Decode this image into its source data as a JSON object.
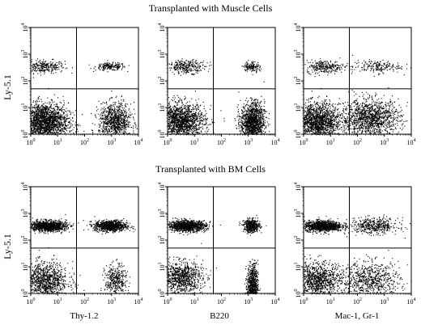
{
  "figure": {
    "row_titles": [
      "Transplanted with Muscle Cells",
      "Transplanted with BM Cells"
    ],
    "y_axis_label": "Ly-5.1",
    "x_axis_labels": [
      "Thy-1.2",
      "B220",
      "Mac-1,  Gr-1"
    ]
  },
  "chart_data": [
    {
      "type": "scatter",
      "title": "Transplanted with Muscle Cells",
      "xlabel": "Thy-1.2",
      "ylabel": "Ly-5.1",
      "xscale": "log",
      "yscale": "log",
      "xlim": [
        1,
        10000
      ],
      "ylim": [
        1,
        10000
      ],
      "x_ticks": [
        "10^0",
        "10^1",
        "10^2",
        "10^3",
        "10^4"
      ],
      "y_ticks": [
        "10^0",
        "10^1",
        "10^2",
        "10^3",
        "10^4"
      ],
      "quadrant_gates": {
        "x": 50,
        "y": 50
      },
      "populations": [
        {
          "x_center": 3,
          "y_center": 350,
          "x_spread": 0.38,
          "y_spread": 0.12,
          "relative_count": 3
        },
        {
          "x_center": 900,
          "y_center": 350,
          "x_spread": 0.28,
          "y_spread": 0.07,
          "relative_count": 2
        },
        {
          "x_center": 3,
          "y_center": 3,
          "x_spread": 0.45,
          "y_spread": 0.35,
          "relative_count": 22
        },
        {
          "x_center": 1300,
          "y_center": 3,
          "x_spread": 0.3,
          "y_spread": 0.35,
          "relative_count": 10
        }
      ]
    },
    {
      "type": "scatter",
      "title": "Transplanted with Muscle Cells",
      "xlabel": "B220",
      "ylabel": "Ly-5.1",
      "xscale": "log",
      "yscale": "log",
      "xlim": [
        1,
        10000
      ],
      "ylim": [
        1,
        10000
      ],
      "x_ticks": [
        "10^0",
        "10^1",
        "10^2",
        "10^3",
        "10^4"
      ],
      "y_ticks": [
        "10^0",
        "10^1",
        "10^2",
        "10^3",
        "10^4"
      ],
      "quadrant_gates": {
        "x": 50,
        "y": 50
      },
      "populations": [
        {
          "x_center": 5,
          "y_center": 350,
          "x_spread": 0.35,
          "y_spread": 0.12,
          "relative_count": 3
        },
        {
          "x_center": 1300,
          "y_center": 350,
          "x_spread": 0.15,
          "y_spread": 0.1,
          "relative_count": 1.5
        },
        {
          "x_center": 3,
          "y_center": 3,
          "x_spread": 0.45,
          "y_spread": 0.35,
          "relative_count": 18
        },
        {
          "x_center": 1400,
          "y_center": 3,
          "x_spread": 0.22,
          "y_spread": 0.35,
          "relative_count": 14
        }
      ]
    },
    {
      "type": "scatter",
      "title": "Transplanted with Muscle Cells",
      "xlabel": "Mac-1,  Gr-1",
      "ylabel": "Ly-5.1",
      "xscale": "log",
      "yscale": "log",
      "xlim": [
        1,
        10000
      ],
      "ylim": [
        1,
        10000
      ],
      "x_ticks": [
        "10^0",
        "10^1",
        "10^2",
        "10^3",
        "10^4"
      ],
      "y_ticks": [
        "10^0",
        "10^1",
        "10^2",
        "10^3",
        "10^4"
      ],
      "quadrant_gates": {
        "x": 50,
        "y": 50
      },
      "populations": [
        {
          "x_center": 6,
          "y_center": 350,
          "x_spread": 0.35,
          "y_spread": 0.12,
          "relative_count": 3
        },
        {
          "x_center": 500,
          "y_center": 350,
          "x_spread": 0.45,
          "y_spread": 0.12,
          "relative_count": 2
        },
        {
          "x_center": 3,
          "y_center": 3,
          "x_spread": 0.45,
          "y_spread": 0.35,
          "relative_count": 18
        },
        {
          "x_center": 300,
          "y_center": 4,
          "x_spread": 0.55,
          "y_spread": 0.35,
          "relative_count": 14
        }
      ]
    },
    {
      "type": "scatter",
      "title": "Transplanted with BM Cells",
      "xlabel": "Thy-1.2",
      "ylabel": "Ly-5.1",
      "xscale": "log",
      "yscale": "log",
      "xlim": [
        1,
        10000
      ],
      "ylim": [
        1,
        10000
      ],
      "x_ticks": [
        "10^0",
        "10^1",
        "10^2",
        "10^3",
        "10^4"
      ],
      "y_ticks": [
        "10^0",
        "10^1",
        "10^2",
        "10^3",
        "10^4"
      ],
      "quadrant_gates": {
        "x": 50,
        "y": 50
      },
      "populations": [
        {
          "x_center": 4,
          "y_center": 350,
          "x_spread": 0.35,
          "y_spread": 0.1,
          "relative_count": 12
        },
        {
          "x_center": 900,
          "y_center": 350,
          "x_spread": 0.3,
          "y_spread": 0.1,
          "relative_count": 10
        },
        {
          "x_center": 3,
          "y_center": 3,
          "x_spread": 0.45,
          "y_spread": 0.35,
          "relative_count": 12
        },
        {
          "x_center": 1400,
          "y_center": 3,
          "x_spread": 0.2,
          "y_spread": 0.3,
          "relative_count": 4
        }
      ]
    },
    {
      "type": "scatter",
      "title": "Transplanted with BM Cells",
      "xlabel": "B220",
      "ylabel": "Ly-5.1",
      "xscale": "log",
      "yscale": "log",
      "xlim": [
        1,
        10000
      ],
      "ylim": [
        1,
        10000
      ],
      "x_ticks": [
        "10^0",
        "10^1",
        "10^2",
        "10^3",
        "10^4"
      ],
      "y_ticks": [
        "10^0",
        "10^1",
        "10^2",
        "10^3",
        "10^4"
      ],
      "quadrant_gates": {
        "x": 50,
        "y": 50
      },
      "populations": [
        {
          "x_center": 5,
          "y_center": 350,
          "x_spread": 0.35,
          "y_spread": 0.1,
          "relative_count": 12
        },
        {
          "x_center": 1300,
          "y_center": 350,
          "x_spread": 0.15,
          "y_spread": 0.12,
          "relative_count": 5
        },
        {
          "x_center": 3,
          "y_center": 4,
          "x_spread": 0.4,
          "y_spread": 0.3,
          "relative_count": 10
        },
        {
          "x_center": 1400,
          "y_center": 2,
          "x_spread": 0.1,
          "y_spread": 0.4,
          "relative_count": 8
        }
      ]
    },
    {
      "type": "scatter",
      "title": "Transplanted with BM Cells",
      "xlabel": "Mac-1,  Gr-1",
      "ylabel": "Ly-5.1",
      "xscale": "log",
      "yscale": "log",
      "xlim": [
        1,
        10000
      ],
      "ylim": [
        1,
        10000
      ],
      "x_ticks": [
        "10^0",
        "10^1",
        "10^2",
        "10^3",
        "10^4"
      ],
      "y_ticks": [
        "10^0",
        "10^1",
        "10^2",
        "10^3",
        "10^4"
      ],
      "quadrant_gates": {
        "x": 50,
        "y": 50
      },
      "populations": [
        {
          "x_center": 5,
          "y_center": 350,
          "x_spread": 0.35,
          "y_spread": 0.1,
          "relative_count": 12
        },
        {
          "x_center": 400,
          "y_center": 350,
          "x_spread": 0.45,
          "y_spread": 0.15,
          "relative_count": 5
        },
        {
          "x_center": 3,
          "y_center": 3,
          "x_spread": 0.45,
          "y_spread": 0.35,
          "relative_count": 12
        },
        {
          "x_center": 300,
          "y_center": 3,
          "x_spread": 0.55,
          "y_spread": 0.35,
          "relative_count": 8
        }
      ]
    }
  ]
}
